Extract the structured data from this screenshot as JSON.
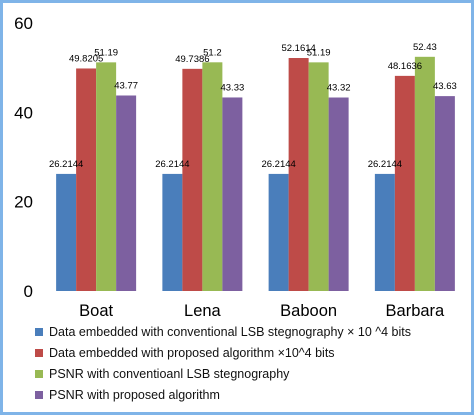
{
  "chart_data": {
    "type": "bar",
    "categories": [
      "Boat",
      "Lena",
      "Baboon",
      "Barbara"
    ],
    "series": [
      {
        "name": "Data embedded with conventional LSB stegnography × 10 ^4 bits",
        "values": [
          26.2144,
          26.2144,
          26.2144,
          26.2144
        ],
        "color": "#4a7ebb"
      },
      {
        "name": "Data embedded with proposed algorithm ×10^4 bits",
        "values": [
          49.8205,
          49.7386,
          52.1614,
          48.1636
        ],
        "color": "#be4b48"
      },
      {
        "name": "PSNR with conventioanl LSB stegnography",
        "values": [
          51.19,
          51.2,
          51.19,
          52.43
        ],
        "color": "#98b954"
      },
      {
        "name": "PSNR with proposed algorithm",
        "values": [
          43.77,
          43.33,
          43.32,
          43.63
        ],
        "color": "#7d60a0"
      }
    ],
    "data_labels": [
      [
        "26.2144",
        "49.8205",
        "51.19",
        "43.77"
      ],
      [
        "26.2144",
        "49.7386",
        "51.2",
        "43.33"
      ],
      [
        "26.2144",
        "52.1614",
        "51.19",
        "43.32"
      ],
      [
        "26.2144",
        "48.1636",
        "52.43",
        "43.63"
      ]
    ],
    "ylim": [
      0,
      60
    ],
    "yticks": [
      "0",
      "20",
      "40",
      "60"
    ],
    "grid": false,
    "legend_position": "bottom"
  }
}
